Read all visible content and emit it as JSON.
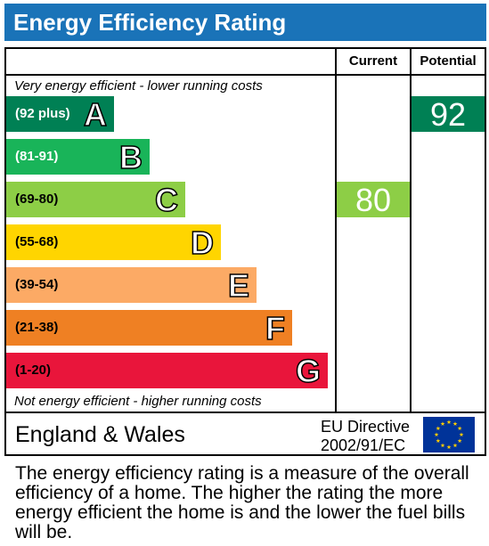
{
  "title": "Energy Efficiency Rating",
  "columns": {
    "current": "Current",
    "potential": "Potential"
  },
  "top_caption": "Very energy efficient - lower running costs",
  "bottom_caption": "Not energy efficient - higher running costs",
  "footer": {
    "region": "England & Wales",
    "directive_line1": "EU Directive",
    "directive_line2": "2002/91/EC"
  },
  "description": "The energy efficiency rating is a measure of the overall efficiency of a home. The higher the rating the more energy efficient the home is and the lower the fuel bills will be.",
  "colors": {
    "header": "#1a73b8",
    "eu_blue": "#003399",
    "eu_gold": "#ffcc00"
  },
  "chart_data": {
    "type": "bar",
    "title": "Energy Efficiency Rating",
    "categories": [
      "A",
      "B",
      "C",
      "D",
      "E",
      "F",
      "G"
    ],
    "bands": [
      {
        "letter": "A",
        "range": "(92 plus)",
        "color": "#008054",
        "range_color": "#ffffff"
      },
      {
        "letter": "B",
        "range": "(81-91)",
        "color": "#19b459",
        "range_color": "#ffffff"
      },
      {
        "letter": "C",
        "range": "(69-80)",
        "color": "#8dce46",
        "range_color": "#000000"
      },
      {
        "letter": "D",
        "range": "(55-68)",
        "color": "#ffd500",
        "range_color": "#000000"
      },
      {
        "letter": "E",
        "range": "(39-54)",
        "color": "#fcaa65",
        "range_color": "#000000"
      },
      {
        "letter": "F",
        "range": "(21-38)",
        "color": "#ef8023",
        "range_color": "#000000"
      },
      {
        "letter": "G",
        "range": "(1-20)",
        "color": "#e9153b",
        "range_color": "#000000"
      }
    ],
    "series": [
      {
        "name": "Current",
        "value": 80,
        "band": "C",
        "color": "#8dce46"
      },
      {
        "name": "Potential",
        "value": 92,
        "band": "A",
        "color": "#008054"
      }
    ]
  }
}
